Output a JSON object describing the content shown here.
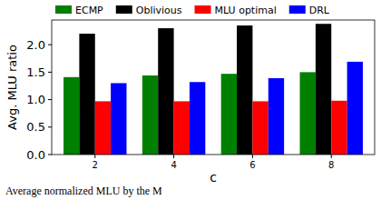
{
  "chart_data": {
    "type": "bar",
    "x_label": "c",
    "y_label": "Avg. MLU ratio",
    "caption": "Average normalized MLU by the M",
    "categories": [
      "2",
      "4",
      "6",
      "8"
    ],
    "series": [
      {
        "name": "ECMP",
        "color": "#008000",
        "values": [
          1.41,
          1.44,
          1.47,
          1.5
        ]
      },
      {
        "name": "Oblivious",
        "color": "#000000",
        "values": [
          2.2,
          2.3,
          2.35,
          2.38
        ]
      },
      {
        "name": "MLU optimal",
        "color": "#ff0000",
        "values": [
          0.97,
          0.97,
          0.97,
          0.98
        ]
      },
      {
        "name": "DRL",
        "color": "#0000ff",
        "values": [
          1.3,
          1.32,
          1.39,
          1.69
        ]
      }
    ],
    "ylim": [
      0,
      2.45
    ],
    "yticks": [
      {
        "value": 0,
        "label": "0.0"
      },
      0.5,
      {
        "value": 1,
        "label": "1.0"
      },
      1.5,
      {
        "value": 2,
        "label": "2.0"
      }
    ],
    "legend": "top",
    "grid": false
  }
}
